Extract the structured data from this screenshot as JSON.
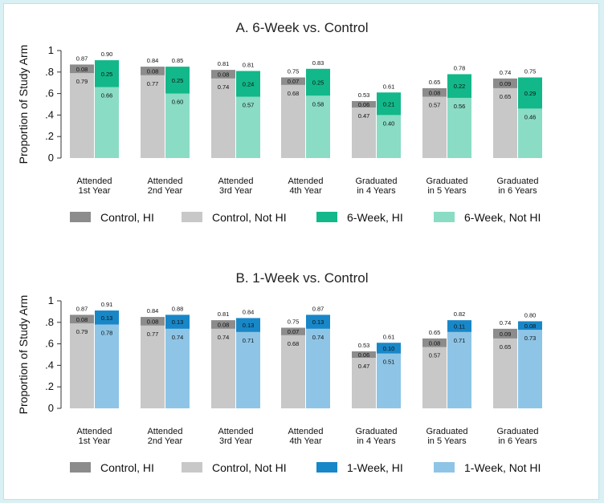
{
  "colors": {
    "control_hi": "#8c8c8c",
    "control_not_hi": "#c8c8c8",
    "six_hi": "#12b889",
    "six_not_hi": "#8adcc5",
    "one_hi": "#1887c8",
    "one_not_hi": "#8ec5e6"
  },
  "chart_data": [
    {
      "type": "bar",
      "title": "A. 6-Week vs. Control",
      "ylabel": "Proportion of Study Arm",
      "ylim": [
        0,
        1
      ],
      "yticks": [
        "0",
        ".2",
        ".4",
        ".6",
        ".8",
        "1"
      ],
      "categories": [
        [
          "Attended",
          "1st Year"
        ],
        [
          "Attended",
          "2nd Year"
        ],
        [
          "Attended",
          "3rd Year"
        ],
        [
          "Attended",
          "4th Year"
        ],
        [
          "Graduated",
          "in 4 Years"
        ],
        [
          "Graduated",
          "in 5 Years"
        ],
        [
          "Graduated",
          "in 6 Years"
        ]
      ],
      "control": {
        "not_hi": [
          "0.79",
          "0.77",
          "0.74",
          "0.68",
          "0.47",
          "0.57",
          "0.65"
        ],
        "hi": [
          "0.08",
          "0.08",
          "0.08",
          "0.07",
          "0.06",
          "0.08",
          "0.09"
        ],
        "total": [
          "0.87",
          "0.84",
          "0.81",
          "0.75",
          "0.53",
          "0.65",
          "0.74"
        ]
      },
      "treatment": {
        "not_hi": [
          "0.66",
          "0.60",
          "0.57",
          "0.58",
          "0.40",
          "0.56",
          "0.46"
        ],
        "hi": [
          "0.25",
          "0.25",
          "0.24",
          "0.25",
          "0.21",
          "0.22",
          "0.29"
        ],
        "total": [
          "0.90",
          "0.85",
          "0.81",
          "0.83",
          "0.61",
          "0.78",
          "0.75"
        ]
      },
      "legend": [
        "Control, HI",
        "Control, Not HI",
        "6-Week, HI",
        "6-Week, Not HI"
      ]
    },
    {
      "type": "bar",
      "title": "B. 1-Week vs. Control",
      "ylabel": "Proportion of Study Arm",
      "ylim": [
        0,
        1
      ],
      "yticks": [
        "0",
        ".2",
        ".4",
        ".6",
        ".8",
        "1"
      ],
      "categories": [
        [
          "Attended",
          "1st Year"
        ],
        [
          "Attended",
          "2nd Year"
        ],
        [
          "Attended",
          "3rd Year"
        ],
        [
          "Attended",
          "4th Year"
        ],
        [
          "Graduated",
          "in 4 Years"
        ],
        [
          "Graduated",
          "in 5 Years"
        ],
        [
          "Graduated",
          "in 6 Years"
        ]
      ],
      "control": {
        "not_hi": [
          "0.79",
          "0.77",
          "0.74",
          "0.68",
          "0.47",
          "0.57",
          "0.65"
        ],
        "hi": [
          "0.08",
          "0.08",
          "0.08",
          "0.07",
          "0.06",
          "0.08",
          "0.09"
        ],
        "total": [
          "0.87",
          "0.84",
          "0.81",
          "0.75",
          "0.53",
          "0.65",
          "0.74"
        ]
      },
      "treatment": {
        "not_hi": [
          "0.78",
          "0.74",
          "0.71",
          "0.74",
          "0.51",
          "0.71",
          "0.73"
        ],
        "hi": [
          "0.13",
          "0.13",
          "0.13",
          "0.13",
          "0.10",
          "0.11",
          "0.08"
        ],
        "total": [
          "0.91",
          "0.88",
          "0.84",
          "0.87",
          "0.61",
          "0.82",
          "0.80"
        ]
      },
      "legend": [
        "Control, HI",
        "Control, Not HI",
        "1-Week, HI",
        "1-Week, Not HI"
      ]
    }
  ]
}
